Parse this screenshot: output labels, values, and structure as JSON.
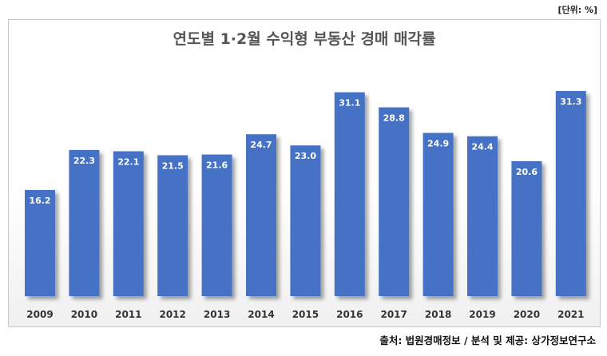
{
  "unit_label": "[단위: %]",
  "source_label": "출처: 법원경매정보 / 분석 및 제공: 상가정보연구소",
  "chart_data": {
    "type": "bar",
    "title": "연도별 1·2월 수익형 부동산 경매 매각률",
    "categories": [
      "2009",
      "2010",
      "2011",
      "2012",
      "2013",
      "2014",
      "2015",
      "2016",
      "2017",
      "2018",
      "2019",
      "2020",
      "2021"
    ],
    "values": [
      16.2,
      22.3,
      22.1,
      21.5,
      21.6,
      24.7,
      23.0,
      31.1,
      28.8,
      24.9,
      24.4,
      20.6,
      31.3
    ],
    "data_labels": [
      "16.2",
      "22.3",
      "22.1",
      "21.5",
      "21.6",
      "24.7",
      "23.0",
      "31.1",
      "28.8",
      "24.9",
      "24.4",
      "20.6",
      "31.3"
    ],
    "xlabel": "",
    "ylabel": "",
    "grid": false,
    "legend": "none",
    "bar_color": "#4472c4",
    "label_color": "#ffffff"
  }
}
